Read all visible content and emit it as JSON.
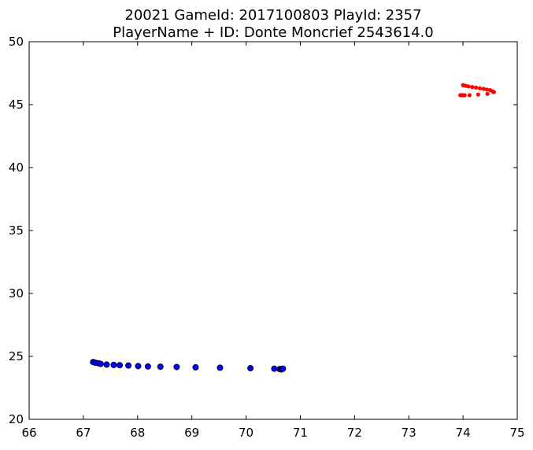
{
  "chart_data": {
    "type": "scatter",
    "title_line1": "20021 GameId: 2017100803 PlayId: 2357",
    "title_line2": "PlayerName + ID: Donte Moncrief 2543614.0",
    "xlim": [
      66,
      75
    ],
    "ylim": [
      20,
      50
    ],
    "x_ticks": [
      66,
      67,
      68,
      69,
      70,
      71,
      72,
      73,
      74,
      75
    ],
    "y_ticks": [
      20,
      25,
      30,
      35,
      40,
      45,
      50
    ],
    "grid": false,
    "series": [
      {
        "color": "#0000ff",
        "marker": "circle-large",
        "edge": "#000000",
        "x": [
          67.18,
          67.22,
          67.28,
          67.32,
          67.43,
          67.56,
          67.67,
          67.83,
          68.01,
          68.19,
          68.42,
          68.72,
          69.07,
          69.52,
          70.08,
          70.52,
          70.62,
          70.64,
          70.66,
          70.67,
          70.68
        ],
        "y": [
          24.55,
          24.5,
          24.45,
          24.4,
          24.35,
          24.32,
          24.3,
          24.27,
          24.23,
          24.2,
          24.18,
          24.16,
          24.13,
          24.1,
          24.06,
          24.02,
          23.99,
          23.97,
          23.98,
          24.01,
          24.02
        ]
      },
      {
        "color": "#ff0000",
        "marker": "circle-small",
        "edge": "#ff0000",
        "x": [
          74.0,
          74.05,
          74.1,
          74.17,
          74.24,
          74.31,
          74.38,
          74.44,
          74.5,
          74.55,
          74.57,
          73.95,
          73.97,
          74.0,
          74.03,
          74.12,
          74.28,
          74.45
        ],
        "y": [
          46.55,
          46.5,
          46.45,
          46.4,
          46.35,
          46.3,
          46.25,
          46.2,
          46.15,
          46.05,
          46.0,
          45.75,
          45.75,
          45.75,
          45.75,
          45.75,
          45.8,
          45.85
        ]
      }
    ]
  }
}
